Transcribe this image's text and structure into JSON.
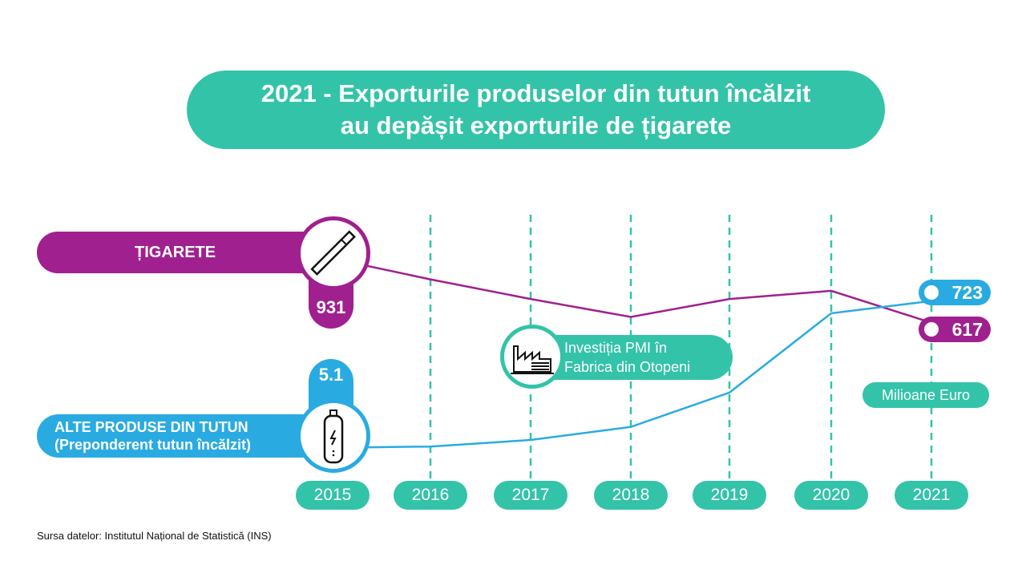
{
  "title": {
    "line1": "2021 - Exporturile produselor din tutun încălzit",
    "line2": "au depășit exporturile de țigarete"
  },
  "source": "Sursa datelor: Institutul Național de Statistică (INS)",
  "annotation": {
    "line1": "Investiția PMI în",
    "line2": "Fabrica din Otopeni",
    "icon": "factory-icon"
  },
  "colors": {
    "teal": "#33c3a9",
    "cigarettes": "#a0208f",
    "heated": "#29abe2"
  },
  "chart_data": {
    "type": "line",
    "categories": [
      "2015",
      "2016",
      "2017",
      "2018",
      "2019",
      "2020",
      "2021"
    ],
    "unit_label": "Milioane Euro",
    "grid": "vertical dashed",
    "series": [
      {
        "name": "ȚIGARETE",
        "icon": "cigarette-icon",
        "color": "#a0208f",
        "values": [
          931,
          829,
          733,
          645,
          733,
          773,
          617
        ],
        "start_label": "931",
        "end_label": "617"
      },
      {
        "name": "ALTE PRODUSE DIN TUTUN",
        "subname": "(Preponderent tutun încălzit)",
        "icon": "heated-tobacco-device-icon",
        "color": "#29abe2",
        "values": [
          5.1,
          11,
          43,
          107,
          275,
          663,
          723
        ],
        "start_label": "5.1",
        "end_label": "723"
      }
    ]
  }
}
